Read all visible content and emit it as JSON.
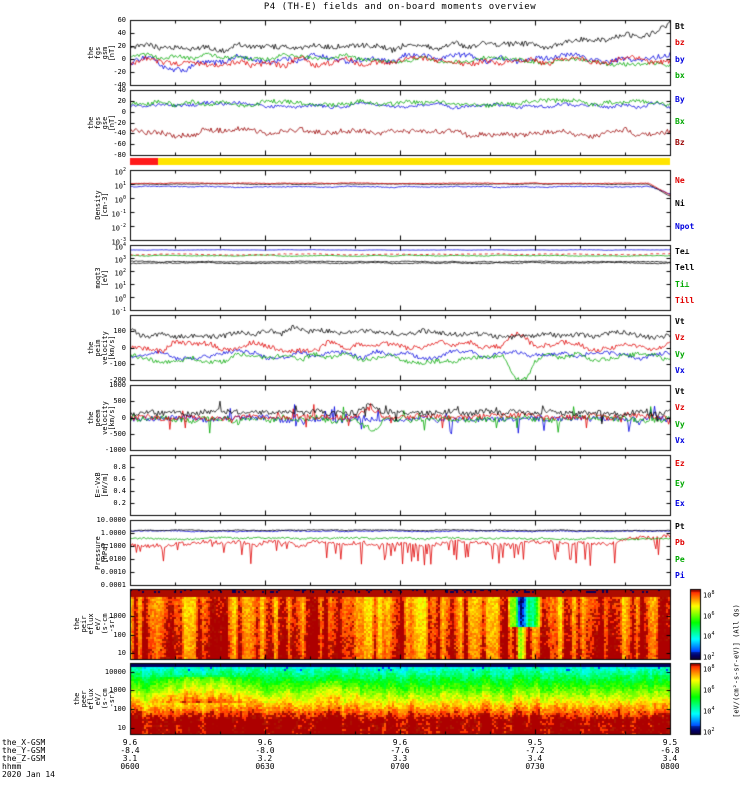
{
  "title": "P4 (TH-E) fields and on-board moments overview",
  "chart_data": {
    "type": "multi-panel-timeseries",
    "x_ticks": [
      "0600",
      "0630",
      "0700",
      "0730",
      "0800"
    ],
    "date_label": "2020 Jan 14",
    "bottom_rows": [
      {
        "label": "the_X-GSM",
        "values": [
          "9.6",
          "9.6",
          "9.6",
          "9.5",
          "9.5"
        ]
      },
      {
        "label": "the_Y-GSM",
        "values": [
          "-8.4",
          "-8.0",
          "-7.6",
          "-7.2",
          "-6.8"
        ]
      },
      {
        "label": "the_Z-GSM",
        "values": [
          "3.1",
          "3.2",
          "3.3",
          "3.4",
          "3.4"
        ]
      },
      {
        "label": "hhmm",
        "values": [
          "0600",
          "0630",
          "0700",
          "0730",
          "0800"
        ]
      }
    ],
    "mode_bar": {
      "segments": [
        {
          "color": "#ff1a1a",
          "t0": 0,
          "t1": 0.052
        },
        {
          "color": "#ffe400",
          "t0": 0.052,
          "t1": 1
        }
      ]
    },
    "colorbar": {
      "ticks": [
        "10^8",
        "10^6",
        "10^4",
        "10^2"
      ],
      "unit_label": "[eV/(cm²-s-sr-eV)] (All Qs)"
    },
    "panels": [
      {
        "id": "fgs_gsm",
        "kind": "line",
        "left_label": [
          "the",
          "fgs",
          "gsm",
          "[nT]"
        ],
        "scale": "linear",
        "ylim": [
          -40,
          60
        ],
        "yticks": [
          {
            "v": 60,
            "label": "60"
          },
          {
            "v": 40,
            "label": "40"
          },
          {
            "v": 20,
            "label": "20"
          },
          {
            "v": 0,
            "label": "0"
          },
          {
            "v": -20,
            "label": "-20"
          },
          {
            "v": -40,
            "label": "-40"
          }
        ],
        "legend": [
          {
            "label": "Bt",
            "color": "#000000"
          },
          {
            "label": "bz",
            "color": "#e00000"
          },
          {
            "label": "by",
            "color": "#0000e0"
          },
          {
            "label": "bx",
            "color": "#00a800"
          }
        ],
        "series": [
          {
            "name": "by",
            "color": "#0000e0",
            "base": 0,
            "amp": 7,
            "jitter": 4,
            "features": [
              {
                "t0": 0.04,
                "t1": 0.12,
                "dv": -24
              }
            ]
          },
          {
            "name": "bx",
            "color": "#00a800",
            "base": 6,
            "amp": 5,
            "jitter": 3,
            "trend": -12
          },
          {
            "name": "bz",
            "color": "#e00000",
            "base": -4,
            "amp": 7,
            "jitter": 4
          },
          {
            "name": "Bt",
            "color": "#000000",
            "base": 16,
            "amp": 6,
            "jitter": 4,
            "trend": 6,
            "features": [
              {
                "t0": 0.8,
                "t1": 1.0,
                "dv": 22,
                "shape": "ramp"
              },
              {
                "t0": 0.96,
                "t1": 1.0,
                "dv": 14,
                "shape": "ramp"
              }
            ]
          }
        ]
      },
      {
        "id": "fgs_gse",
        "kind": "line",
        "left_label": [
          "the",
          "fgs",
          "gse",
          "[nT]"
        ],
        "scale": "linear",
        "ylim": [
          -80,
          40
        ],
        "yticks": [
          {
            "v": 40,
            "label": "40"
          },
          {
            "v": 20,
            "label": "20"
          },
          {
            "v": 0,
            "label": "0"
          },
          {
            "v": -20,
            "label": "-20"
          },
          {
            "v": -40,
            "label": "-40"
          },
          {
            "v": -60,
            "label": "-60"
          },
          {
            "v": -80,
            "label": "-80"
          }
        ],
        "legend": [
          {
            "label": "By",
            "color": "#0000e0"
          },
          {
            "label": "Bx",
            "color": "#00a800"
          },
          {
            "label": "Bz",
            "color": "#990000"
          }
        ],
        "series": [
          {
            "name": "By",
            "color": "#0000e0",
            "base": 12,
            "amp": 5,
            "jitter": 3
          },
          {
            "name": "Bx",
            "color": "#00a800",
            "base": 16,
            "amp": 5,
            "jitter": 4
          },
          {
            "name": "Bz",
            "color": "#990000",
            "base": -38,
            "amp": 7,
            "jitter": 5
          }
        ]
      },
      {
        "id": "density",
        "kind": "line",
        "left_label": [
          "Density",
          "[cm-3]"
        ],
        "scale": "log",
        "ylim": [
          -3,
          2
        ],
        "yticks": [
          {
            "v": 2,
            "label": "10^2"
          },
          {
            "v": 1,
            "label": "10^1"
          },
          {
            "v": 0,
            "label": "10^0"
          },
          {
            "v": -1,
            "label": "10^-1"
          },
          {
            "v": -2,
            "label": "10^-2"
          },
          {
            "v": -3,
            "label": "10^-3"
          }
        ],
        "legend": [
          {
            "label": "Ne",
            "color": "#e00000"
          },
          {
            "label": "Ni",
            "color": "#000000"
          },
          {
            "label": "Npot",
            "color": "#0000e0"
          }
        ],
        "series": [
          {
            "name": "Npot",
            "color": "#0000e0",
            "base": 0.8,
            "amp": 0.05,
            "jitter": 0.03,
            "features": [
              {
                "t0": 0.96,
                "t1": 1,
                "dv": -0.5,
                "shape": "ramp"
              }
            ]
          },
          {
            "name": "Ni",
            "color": "#000000",
            "base": 1.0,
            "amp": 0.03,
            "jitter": 0.02,
            "features": [
              {
                "t0": 0.96,
                "t1": 1,
                "dv": -0.85,
                "shape": "ramp"
              }
            ]
          },
          {
            "name": "Ne",
            "color": "#e00000",
            "base": 1.05,
            "amp": 0.03,
            "jitter": 0.02,
            "features": [
              {
                "t0": 0.96,
                "t1": 1,
                "dv": -0.85,
                "shape": "ramp"
              }
            ]
          }
        ]
      },
      {
        "id": "temperature",
        "kind": "line",
        "left_label": [
          "moqt3",
          "[eV]"
        ],
        "scale": "log",
        "ylim": [
          -1,
          4
        ],
        "yticks": [
          {
            "v": 4,
            "label": "10^4"
          },
          {
            "v": 3,
            "label": "10^3"
          },
          {
            "v": 2,
            "label": "10^2"
          },
          {
            "v": 1,
            "label": "10^1"
          },
          {
            "v": 0,
            "label": "10^0"
          },
          {
            "v": -1,
            "label": "10^-1"
          }
        ],
        "legend": [
          {
            "label": "Te⊥",
            "color": "#000000"
          },
          {
            "label": "Tell",
            "color": "#000000"
          },
          {
            "label": "Ti⊥",
            "color": "#00a800"
          },
          {
            "label": "Till",
            "color": "#e00000"
          }
        ],
        "series": [
          {
            "name": "Ti⊥",
            "color": "#00a800",
            "base": 3.18,
            "amp": 0.05,
            "jitter": 0.02
          },
          {
            "name": "Till",
            "color": "#e00000",
            "base": 3.28,
            "amp": 0.05,
            "jitter": 0.02,
            "dash": true
          },
          {
            "name": "Te⊥",
            "color": "#000000",
            "base": 2.72,
            "amp": 0.05,
            "jitter": 0.03
          },
          {
            "name": "Tell",
            "color": "#000000",
            "base": 2.62,
            "amp": 0.05,
            "jitter": 0.03
          },
          {
            "name": "unlabeled",
            "color": "#0000e0",
            "base": 3.62,
            "amp": 0.02,
            "jitter": 0.01
          }
        ]
      },
      {
        "id": "vel_i",
        "kind": "line",
        "left_label": [
          "the",
          "peim",
          "velocity",
          "[km/s]"
        ],
        "scale": "linear",
        "ylim": [
          -200,
          200
        ],
        "yticks": [
          {
            "v": 100,
            "label": "100"
          },
          {
            "v": 0,
            "label": "0"
          },
          {
            "v": -100,
            "label": "-100"
          },
          {
            "v": -200,
            "label": "-200"
          }
        ],
        "legend": [
          {
            "label": "Vt",
            "color": "#000000"
          },
          {
            "label": "Vz",
            "color": "#e00000"
          },
          {
            "label": "Vy",
            "color": "#00a800"
          },
          {
            "label": "Vx",
            "color": "#0000e0"
          }
        ],
        "series": [
          {
            "name": "Vx",
            "color": "#0000e0",
            "base": -45,
            "amp": 25,
            "jitter": 12
          },
          {
            "name": "Vy",
            "color": "#00a800",
            "base": -65,
            "amp": 28,
            "jitter": 14,
            "features": [
              {
                "t0": 0.695,
                "t1": 0.75,
                "dv": -115
              }
            ]
          },
          {
            "name": "Vz",
            "color": "#e00000",
            "base": 5,
            "amp": 30,
            "jitter": 15,
            "features": [
              {
                "t0": 0.69,
                "t1": 0.75,
                "dv": 55
              }
            ]
          },
          {
            "name": "Vt",
            "color": "#000000",
            "base": 85,
            "amp": 25,
            "jitter": 15,
            "features": [
              {
                "t0": 0.28,
                "t1": 0.33,
                "dv": 45
              }
            ]
          }
        ]
      },
      {
        "id": "vel_e",
        "kind": "line",
        "left_label": [
          "the",
          "peem",
          "velocity",
          "[km/s]"
        ],
        "scale": "linear",
        "ylim": [
          -1000,
          1000
        ],
        "yticks": [
          {
            "v": 1000,
            "label": "1000"
          },
          {
            "v": 500,
            "label": "500"
          },
          {
            "v": 0,
            "label": "0"
          },
          {
            "v": -500,
            "label": "-500"
          },
          {
            "v": -1000,
            "label": "-1000"
          }
        ],
        "legend": [
          {
            "label": "Vt",
            "color": "#000000"
          },
          {
            "label": "Vz",
            "color": "#e00000"
          },
          {
            "label": "Vy",
            "color": "#00a800"
          },
          {
            "label": "Vx",
            "color": "#0000e0"
          }
        ],
        "series": [
          {
            "name": "Vx",
            "color": "#0000e0",
            "base": -40,
            "amp": 60,
            "jitter": 90,
            "spike_prob": 0.05,
            "spike_amp": 420,
            "spike_sym": true
          },
          {
            "name": "Vy",
            "color": "#00a800",
            "base": -50,
            "amp": 60,
            "jitter": 90,
            "spike_prob": 0.06,
            "spike_amp": 450,
            "spike_sym": true,
            "features": [
              {
                "t0": 0.42,
                "t1": 0.47,
                "dv": -260
              }
            ]
          },
          {
            "name": "Vz",
            "color": "#e00000",
            "base": 20,
            "amp": 50,
            "jitter": 80,
            "spike_prob": 0.05,
            "spike_amp": 380,
            "spike_sym": true,
            "features": [
              {
                "t0": 0.42,
                "t1": 0.47,
                "dv": 240
              }
            ]
          },
          {
            "name": "Vt",
            "color": "#000000",
            "base": 150,
            "amp": 60,
            "jitter": 80,
            "spike_prob": 0.05,
            "spike_amp": 350,
            "spike_sym": true,
            "features": [
              {
                "t0": 0.42,
                "t1": 0.47,
                "dv": 280
              }
            ]
          }
        ]
      },
      {
        "id": "efield",
        "kind": "line",
        "left_label": [
          "E=-VxB",
          "[mV/m]"
        ],
        "scale": "linear",
        "ylim": [
          0,
          1
        ],
        "yticks": [
          {
            "v": 0.8,
            "label": "0.8"
          },
          {
            "v": 0.6,
            "label": "0.6"
          },
          {
            "v": 0.4,
            "label": "0.4"
          },
          {
            "v": 0.2,
            "label": "0.2"
          }
        ],
        "legend": [
          {
            "label": "Ez",
            "color": "#e00000"
          },
          {
            "label": "Ey",
            "color": "#00a800"
          },
          {
            "label": "Ex",
            "color": "#0000e0"
          }
        ],
        "series": []
      },
      {
        "id": "pressure",
        "kind": "line",
        "left_label": [
          "Pressure",
          "[nPa]"
        ],
        "scale": "log",
        "ylim": [
          -4,
          1
        ],
        "yticks": [
          {
            "v": 1,
            "label": "10.0000"
          },
          {
            "v": 0,
            "label": "1.0000"
          },
          {
            "v": -1,
            "label": "0.1000"
          },
          {
            "v": -2,
            "label": "0.0100"
          },
          {
            "v": -3,
            "label": "0.0010"
          },
          {
            "v": -4,
            "label": "0.0001"
          }
        ],
        "legend": [
          {
            "label": "Pt",
            "color": "#000000"
          },
          {
            "label": "Pb",
            "color": "#e00000"
          },
          {
            "label": "Pe",
            "color": "#00a800"
          },
          {
            "label": "Pi",
            "color": "#0000e0"
          }
        ],
        "series": [
          {
            "name": "Pb",
            "color": "#e00000",
            "base": -0.8,
            "amp": 0.18,
            "jitter": 0.15,
            "spike_prob": 0.15,
            "spike_amp": -1.6,
            "features": [
              {
                "t0": 0.86,
                "t1": 1,
                "dv": 0.5,
                "shape": "ramp"
              }
            ]
          },
          {
            "name": "Pe",
            "color": "#00a800",
            "base": -0.42,
            "amp": 0.07,
            "jitter": 0.07
          },
          {
            "name": "Pi",
            "color": "#0000e0",
            "base": 0.14,
            "amp": 0.04,
            "jitter": 0.04
          },
          {
            "name": "Pt",
            "color": "#000000",
            "base": 0.2,
            "amp": 0.04,
            "jitter": 0.03
          }
        ]
      },
      {
        "id": "spec_i",
        "kind": "heatmap",
        "left_label": [
          "the",
          "peir",
          "eflux",
          "eV/",
          "(s-cm",
          "-sr)"
        ],
        "scale": "log",
        "ylim": [
          0.7,
          4.45
        ],
        "yticks": [
          {
            "v": 3,
            "label": "1000"
          },
          {
            "v": 2,
            "label": "100"
          },
          {
            "v": 1,
            "label": "10"
          }
        ],
        "legend": [],
        "heat": {
          "base": 0.95,
          "egrad": -0.08,
          "stripe": 0.13,
          "noise": 0.05,
          "top_dark": 0.9,
          "top_speckle": 0.96,
          "features": [
            {
              "t0": 0.7,
              "t1": 0.765,
              "e0": 0.45,
              "e1": 1.0,
              "dv": -0.6
            },
            {
              "t0": 0.715,
              "t1": 0.737,
              "e0": 0.0,
              "e1": 1.0,
              "dv": -0.18
            }
          ]
        }
      },
      {
        "id": "spec_e",
        "kind": "heatmap",
        "left_label": [
          "the",
          "peer",
          "eflux",
          "eV/",
          "(s-cm",
          "-sr)"
        ],
        "scale": "log",
        "ylim": [
          0.7,
          4.45
        ],
        "yticks": [
          {
            "v": 4,
            "label": "10000"
          },
          {
            "v": 3,
            "label": "1000"
          },
          {
            "v": 2,
            "label": "100"
          },
          {
            "v": 1,
            "label": "10"
          }
        ],
        "legend": [],
        "heat": {
          "profile": "electron",
          "base": 1.02,
          "knee": 0.2,
          "slope": 0.95,
          "stripe": 0.06,
          "noise": 0.06,
          "top_black": 0.97,
          "features": [
            {
              "t0": 0.02,
              "t1": 0.24,
              "e0": 0.45,
              "e1": 0.8,
              "dv": 0.14
            },
            {
              "t0": 0.3,
              "t1": 0.45,
              "e0": 0.5,
              "e1": 0.75,
              "dv": 0.05
            }
          ]
        }
      }
    ]
  }
}
